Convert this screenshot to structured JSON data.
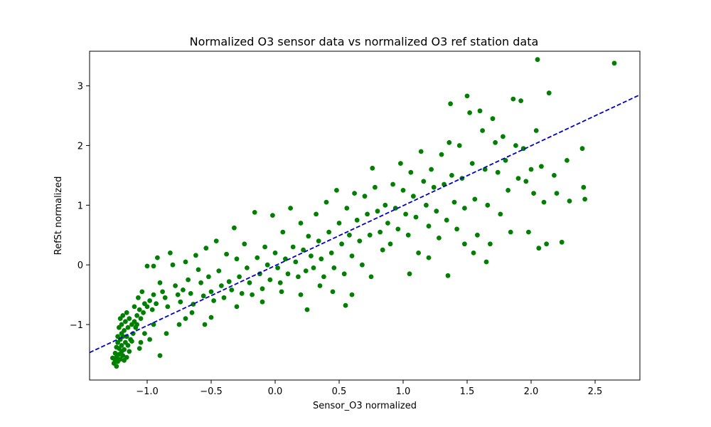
{
  "chart_data": {
    "type": "scatter",
    "title": "Normalized O3 sensor data vs normalized O3 ref station data",
    "xlabel": "Sensor_O3 normalized",
    "ylabel": "RefSt normalized",
    "xlim": [
      -1.45,
      2.85
    ],
    "ylim": [
      -1.93,
      3.58
    ],
    "xticks": [
      -1.0,
      -0.5,
      0.0,
      0.5,
      1.0,
      1.5,
      2.0,
      2.5
    ],
    "xtick_labels": [
      "−1.0",
      "−0.5",
      "0.0",
      "0.5",
      "1.0",
      "1.5",
      "2.0",
      "2.5"
    ],
    "yticks": [
      -1,
      0,
      1,
      2,
      3
    ],
    "ytick_labels": [
      "−1",
      "0",
      "1",
      "2",
      "3"
    ],
    "grid": false,
    "point_color": "#008000",
    "series": [
      {
        "type": "scatter",
        "points": [
          [
            -1.26,
            -1.65
          ],
          [
            -1.25,
            -1.6
          ],
          [
            -1.24,
            -1.55
          ],
          [
            -1.23,
            -1.62
          ],
          [
            -1.22,
            -1.5
          ],
          [
            -1.21,
            -1.58
          ],
          [
            -1.2,
            -1.45
          ],
          [
            -1.19,
            -1.52
          ],
          [
            -1.25,
            -1.48
          ],
          [
            -1.22,
            -1.4
          ],
          [
            -1.2,
            -1.35
          ],
          [
            -1.18,
            -1.42
          ],
          [
            -1.23,
            -1.3
          ],
          [
            -1.21,
            -1.25
          ],
          [
            -1.19,
            -1.2
          ],
          [
            -1.17,
            -1.3
          ],
          [
            -1.24,
            -1.38
          ],
          [
            -1.2,
            -1.15
          ],
          [
            -1.18,
            -1.1
          ],
          [
            -1.16,
            -1.2
          ],
          [
            -1.22,
            -1.05
          ],
          [
            -1.2,
            -1.0
          ],
          [
            -1.17,
            -0.95
          ],
          [
            -1.15,
            -1.05
          ],
          [
            -1.21,
            -0.9
          ],
          [
            -1.19,
            -0.85
          ],
          [
            -1.16,
            -0.8
          ],
          [
            -1.14,
            -0.9
          ],
          [
            -1.12,
            -1.0
          ],
          [
            -1.1,
            -0.95
          ],
          [
            -1.18,
            -1.6
          ],
          [
            -1.16,
            -1.55
          ],
          [
            -1.14,
            -1.45
          ],
          [
            -1.24,
            -1.7
          ],
          [
            -1.27,
            -1.56
          ],
          [
            -1.23,
            -1.2
          ],
          [
            -1.15,
            -1.35
          ],
          [
            -1.13,
            -1.25
          ],
          [
            -1.11,
            -1.15
          ],
          [
            -1.09,
            -1.05
          ],
          [
            -1.08,
            -0.85
          ],
          [
            -1.06,
            -0.75
          ],
          [
            -1.05,
            -0.9
          ],
          [
            -1.03,
            -0.8
          ],
          [
            -1.02,
            -0.65
          ],
          [
            -1.0,
            -0.7
          ],
          [
            -0.98,
            -0.6
          ],
          [
            -0.96,
            -0.75
          ],
          [
            -0.95,
            -0.5
          ],
          [
            -0.93,
            -0.65
          ],
          [
            -1.1,
            -0.7
          ],
          [
            -1.07,
            -0.55
          ],
          [
            -1.04,
            -0.45
          ],
          [
            -1.0,
            -0.02
          ],
          [
            -0.95,
            -0.02
          ],
          [
            -0.92,
            0.12
          ],
          [
            -0.9,
            -0.3
          ],
          [
            -0.88,
            -0.45
          ],
          [
            -0.86,
            -0.55
          ],
          [
            -0.84,
            -0.7
          ],
          [
            -0.82,
            0.2
          ],
          [
            -0.8,
            0.0
          ],
          [
            -0.78,
            -0.35
          ],
          [
            -0.76,
            -0.5
          ],
          [
            -0.74,
            -0.62
          ],
          [
            -0.72,
            -0.42
          ],
          [
            -0.7,
            0.05
          ],
          [
            -0.68,
            -0.25
          ],
          [
            -0.66,
            -0.48
          ],
          [
            -0.64,
            -0.66
          ],
          [
            -0.62,
            0.16
          ],
          [
            -0.6,
            -0.08
          ],
          [
            -0.58,
            -0.3
          ],
          [
            -0.56,
            -0.52
          ],
          [
            -0.54,
            0.28
          ],
          [
            -0.52,
            -0.2
          ],
          [
            -0.5,
            -0.45
          ],
          [
            -0.48,
            -0.6
          ],
          [
            -0.46,
            0.4
          ],
          [
            -0.44,
            -0.1
          ],
          [
            -0.42,
            -0.35
          ],
          [
            -0.4,
            -0.55
          ],
          [
            -0.38,
            0.18
          ],
          [
            -0.36,
            -0.28
          ],
          [
            -0.34,
            -0.42
          ],
          [
            -0.32,
            0.62
          ],
          [
            -0.3,
            0.1
          ],
          [
            -0.28,
            -0.2
          ],
          [
            -0.26,
            -0.48
          ],
          [
            -0.24,
            0.35
          ],
          [
            -0.22,
            -0.05
          ],
          [
            -0.2,
            -0.3
          ],
          [
            -0.18,
            -0.5
          ],
          [
            -0.16,
            0.88
          ],
          [
            -0.14,
            0.12
          ],
          [
            -0.12,
            -0.15
          ],
          [
            -0.1,
            -0.4
          ],
          [
            -0.08,
            0.3
          ],
          [
            -0.06,
            0.0
          ],
          [
            -0.04,
            -0.25
          ],
          [
            -0.02,
            0.83
          ],
          [
            0.0,
            0.2
          ],
          [
            0.02,
            -0.05
          ],
          [
            0.04,
            -0.3
          ],
          [
            0.06,
            0.55
          ],
          [
            0.08,
            0.1
          ],
          [
            0.1,
            -0.15
          ],
          [
            0.12,
            0.95
          ],
          [
            0.14,
            0.3
          ],
          [
            0.16,
            0.05
          ],
          [
            0.18,
            -0.2
          ],
          [
            0.2,
            0.7
          ],
          [
            0.22,
            0.25
          ],
          [
            0.24,
            -0.1
          ],
          [
            0.25,
            -0.75
          ],
          [
            0.26,
            0.48
          ],
          [
            0.28,
            0.15
          ],
          [
            0.3,
            -0.05
          ],
          [
            0.32,
            0.85
          ],
          [
            0.34,
            0.4
          ],
          [
            0.36,
            0.1
          ],
          [
            0.38,
            -0.2
          ],
          [
            0.4,
            1.05
          ],
          [
            0.42,
            0.55
          ],
          [
            0.44,
            0.2
          ],
          [
            0.46,
            -0.05
          ],
          [
            0.48,
            1.25
          ],
          [
            0.5,
            0.7
          ],
          [
            0.52,
            0.35
          ],
          [
            0.54,
            -0.15
          ],
          [
            0.56,
            0.95
          ],
          [
            0.58,
            0.5
          ],
          [
            0.6,
            0.15
          ],
          [
            0.62,
            1.2
          ],
          [
            0.64,
            0.75
          ],
          [
            0.66,
            0.4
          ],
          [
            0.68,
            0.0
          ],
          [
            0.7,
            1.15
          ],
          [
            0.72,
            0.85
          ],
          [
            0.74,
            0.5
          ],
          [
            0.76,
            1.62
          ],
          [
            0.78,
            1.3
          ],
          [
            0.8,
            0.9
          ],
          [
            0.82,
            0.55
          ],
          [
            0.84,
            0.25
          ],
          [
            0.86,
            1.0
          ],
          [
            0.88,
            0.7
          ],
          [
            0.9,
            0.35
          ],
          [
            0.92,
            1.35
          ],
          [
            0.94,
            0.95
          ],
          [
            0.96,
            0.6
          ],
          [
            0.98,
            1.7
          ],
          [
            1.0,
            1.25
          ],
          [
            1.02,
            0.85
          ],
          [
            1.04,
            0.5
          ],
          [
            1.06,
            1.55
          ],
          [
            1.08,
            1.15
          ],
          [
            1.1,
            0.8
          ],
          [
            1.12,
            0.2
          ],
          [
            1.14,
            1.9
          ],
          [
            1.16,
            1.4
          ],
          [
            1.18,
            1.0
          ],
          [
            1.2,
            0.65
          ],
          [
            1.22,
            1.6
          ],
          [
            1.24,
            1.3
          ],
          [
            1.26,
            0.9
          ],
          [
            1.28,
            0.45
          ],
          [
            1.3,
            1.85
          ],
          [
            1.32,
            1.35
          ],
          [
            1.34,
            0.75
          ],
          [
            1.36,
            2.05
          ],
          [
            1.37,
            2.7
          ],
          [
            1.38,
            1.5
          ],
          [
            1.4,
            1.05
          ],
          [
            1.42,
            0.6
          ],
          [
            1.44,
            2.0
          ],
          [
            1.46,
            1.45
          ],
          [
            1.48,
            0.95
          ],
          [
            1.5,
            2.83
          ],
          [
            1.52,
            2.55
          ],
          [
            1.54,
            1.7
          ],
          [
            1.56,
            1.1
          ],
          [
            1.58,
            0.5
          ],
          [
            1.6,
            2.58
          ],
          [
            1.62,
            2.25
          ],
          [
            1.64,
            1.6
          ],
          [
            1.66,
            1.0
          ],
          [
            1.68,
            0.35
          ],
          [
            1.7,
            2.45
          ],
          [
            1.72,
            2.05
          ],
          [
            1.74,
            1.55
          ],
          [
            1.76,
            0.85
          ],
          [
            1.78,
            2.15
          ],
          [
            1.8,
            1.75
          ],
          [
            1.82,
            1.25
          ],
          [
            1.84,
            0.55
          ],
          [
            1.86,
            2.78
          ],
          [
            1.88,
            2.0
          ],
          [
            1.9,
            1.45
          ],
          [
            1.92,
            2.75
          ],
          [
            1.94,
            1.95
          ],
          [
            1.96,
            1.4
          ],
          [
            1.98,
            0.55
          ],
          [
            2.0,
            1.6
          ],
          [
            2.02,
            1.2
          ],
          [
            2.04,
            2.25
          ],
          [
            2.05,
            3.44
          ],
          [
            2.06,
            0.28
          ],
          [
            2.08,
            1.65
          ],
          [
            2.1,
            1.05
          ],
          [
            2.12,
            0.35
          ],
          [
            2.14,
            2.88
          ],
          [
            2.18,
            1.5
          ],
          [
            2.2,
            1.2
          ],
          [
            2.24,
            0.38
          ],
          [
            2.28,
            1.75
          ],
          [
            2.3,
            1.07
          ],
          [
            2.4,
            1.95
          ],
          [
            2.41,
            1.3
          ],
          [
            2.42,
            1.1
          ],
          [
            2.65,
            3.38
          ],
          [
            1.65,
            0.05
          ],
          [
            1.55,
            0.2
          ],
          [
            1.48,
            0.35
          ],
          [
            1.2,
            0.12
          ],
          [
            1.05,
            -0.15
          ],
          [
            1.35,
            -0.18
          ],
          [
            0.75,
            -0.2
          ],
          [
            0.6,
            -0.5
          ],
          [
            0.55,
            -0.68
          ],
          [
            0.45,
            -0.45
          ],
          [
            0.35,
            -0.35
          ],
          [
            0.2,
            -0.5
          ],
          [
            0.05,
            -0.45
          ],
          [
            -0.1,
            -0.62
          ],
          [
            -0.3,
            -0.7
          ],
          [
            -0.5,
            -0.88
          ],
          [
            -0.7,
            -0.9
          ],
          [
            -0.9,
            -1.52
          ],
          [
            -1.05,
            -1.3
          ],
          [
            -0.85,
            -1.15
          ],
          [
            -0.75,
            -1.0
          ],
          [
            -0.65,
            -0.8
          ],
          [
            -0.55,
            -1.0
          ],
          [
            -0.95,
            -1.0
          ],
          [
            -0.98,
            -1.25
          ],
          [
            -1.02,
            -1.15
          ],
          [
            -1.06,
            -1.4
          ],
          [
            -1.12,
            -1.28
          ],
          [
            -1.08,
            -1.0
          ]
        ]
      },
      {
        "type": "line",
        "style": "dashed",
        "color": "#0000cc",
        "x": [
          -1.45,
          2.85
        ],
        "y": [
          -1.47,
          2.85
        ]
      }
    ]
  }
}
